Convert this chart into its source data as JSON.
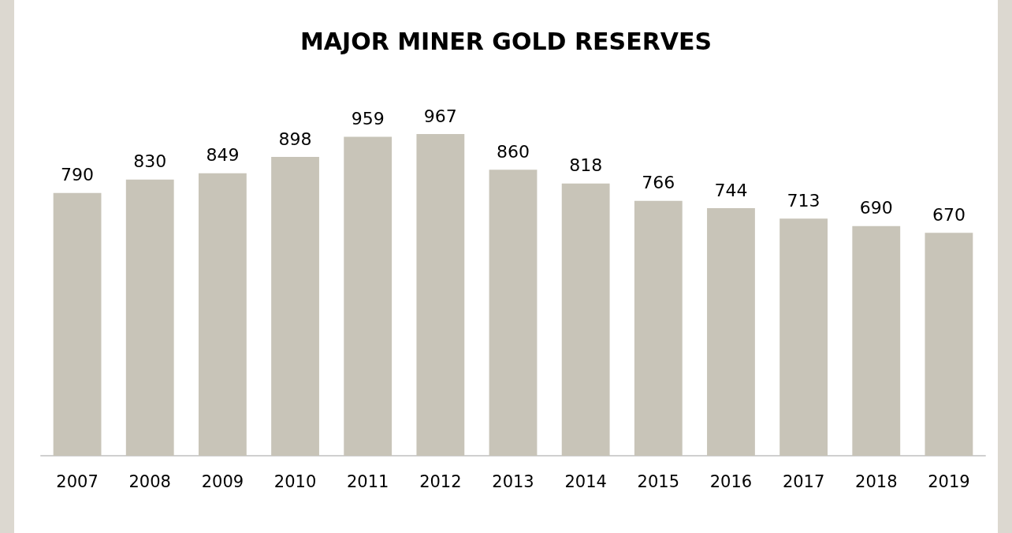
{
  "chart_data": {
    "type": "bar",
    "title": "MAJOR MINER GOLD RESERVES",
    "categories": [
      "2007",
      "2008",
      "2009",
      "2010",
      "2011",
      "2012",
      "2013",
      "2014",
      "2015",
      "2016",
      "2017",
      "2018",
      "2019"
    ],
    "values": [
      790,
      830,
      849,
      898,
      959,
      967,
      860,
      818,
      766,
      744,
      713,
      690,
      670
    ],
    "color": "#c8c4b8",
    "data_labels": true
  }
}
